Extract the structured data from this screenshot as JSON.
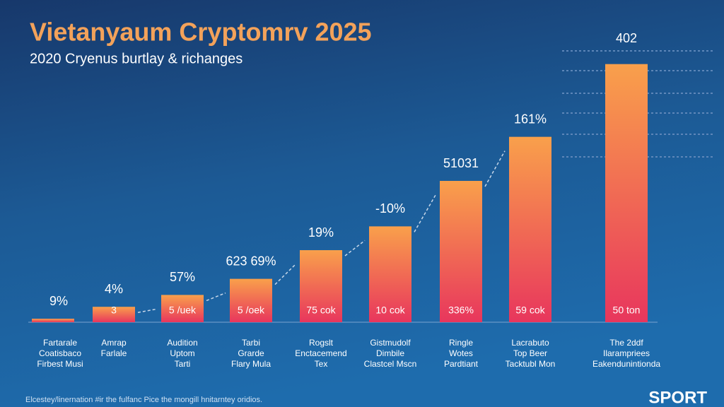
{
  "chart_data": {
    "type": "bar",
    "title": "Vietanyaum Cryptomrv 2025",
    "subtitle": "2020 Cryenus burtlay & richanges",
    "categories": [
      [
        "Fartarale",
        "Coatisbaco",
        "Firbest Musi"
      ],
      [
        "Amrap",
        "Farlale"
      ],
      [
        "Audition",
        "Uptom",
        "Tarti"
      ],
      [
        "Tarbi",
        "Grarde",
        "Flary Mula"
      ],
      [
        "Rogslt",
        "Enctacemend",
        "Tex"
      ],
      [
        "Gistmudolf",
        "Dimbile",
        "Clastcel Mscn"
      ],
      [
        "Ringle",
        "Wotes",
        "Pardtiant"
      ],
      [
        "Lacrabuto",
        "Top Beer",
        "Tacktubl Mon"
      ],
      [
        "The 2ddf",
        "Ilarampriees",
        "Eakendunintionda"
      ]
    ],
    "values": [
      5,
      22,
      39,
      62,
      103,
      137,
      202,
      265,
      369
    ],
    "ylim": [
      0,
      400
    ],
    "annotations": [
      "9%",
      "4%",
      "57%",
      "623 69%",
      "19%",
      "-10%",
      "51031",
      "161%",
      "402"
    ],
    "bar_labels": [
      null,
      "3",
      "5 /uek",
      "5 /oek",
      "75 cok",
      "10 cok",
      "336%",
      "59 cok",
      "50 ton"
    ],
    "gradient": [
      "#f9a04b",
      "#e8365d"
    ],
    "footer": "Elcestey/linernation #ir the fulfanc Pice the mongill hnitarntey oridios.",
    "logo": "SPORT"
  }
}
